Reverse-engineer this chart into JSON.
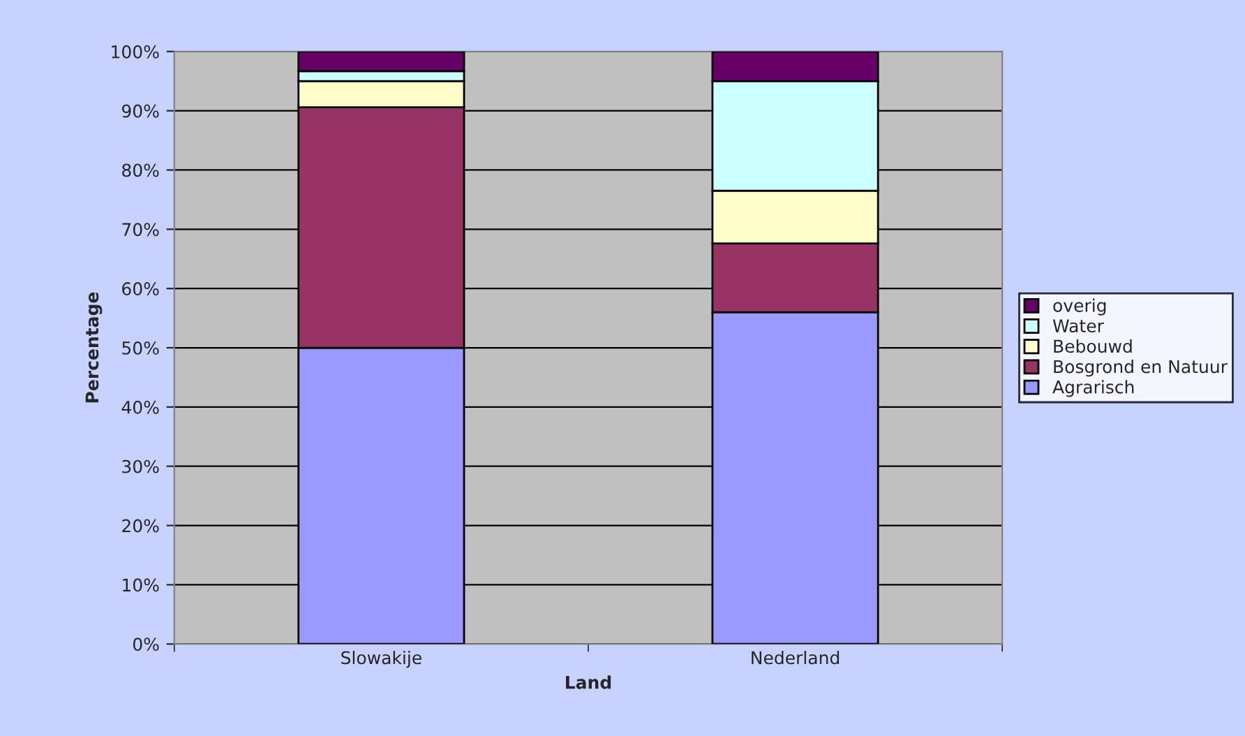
{
  "chart_data": {
    "type": "bar",
    "stacked": true,
    "xlabel": "Land",
    "ylabel": "Percentage",
    "categories": [
      "Slowakije",
      "Nederland"
    ],
    "series": [
      {
        "name": "Agrarisch",
        "color": "#9999ff",
        "values": [
          50,
          56
        ]
      },
      {
        "name": "Bosgrond en Natuur",
        "color": "#993366",
        "values": [
          40.6,
          11.6
        ]
      },
      {
        "name": "Bebouwd",
        "color": "#ffffcc",
        "values": [
          4.4,
          8.9
        ]
      },
      {
        "name": "Water",
        "color": "#ccffff",
        "values": [
          1.7,
          18.5
        ]
      },
      {
        "name": "overig",
        "color": "#660066",
        "values": [
          3.3,
          5
        ]
      }
    ],
    "ylim": [
      0,
      100
    ],
    "yticks": [
      {
        "value": 0,
        "label": "0%"
      },
      {
        "value": 10,
        "label": "10%"
      },
      {
        "value": 20,
        "label": "20%"
      },
      {
        "value": 30,
        "label": "30%"
      },
      {
        "value": 40,
        "label": "40%"
      },
      {
        "value": 50,
        "label": "50%"
      },
      {
        "value": 60,
        "label": "60%"
      },
      {
        "value": 70,
        "label": "70%"
      },
      {
        "value": 80,
        "label": "80%"
      },
      {
        "value": 90,
        "label": "90%"
      },
      {
        "value": 100,
        "label": "100%"
      }
    ],
    "grid": "y",
    "legend": "right"
  }
}
